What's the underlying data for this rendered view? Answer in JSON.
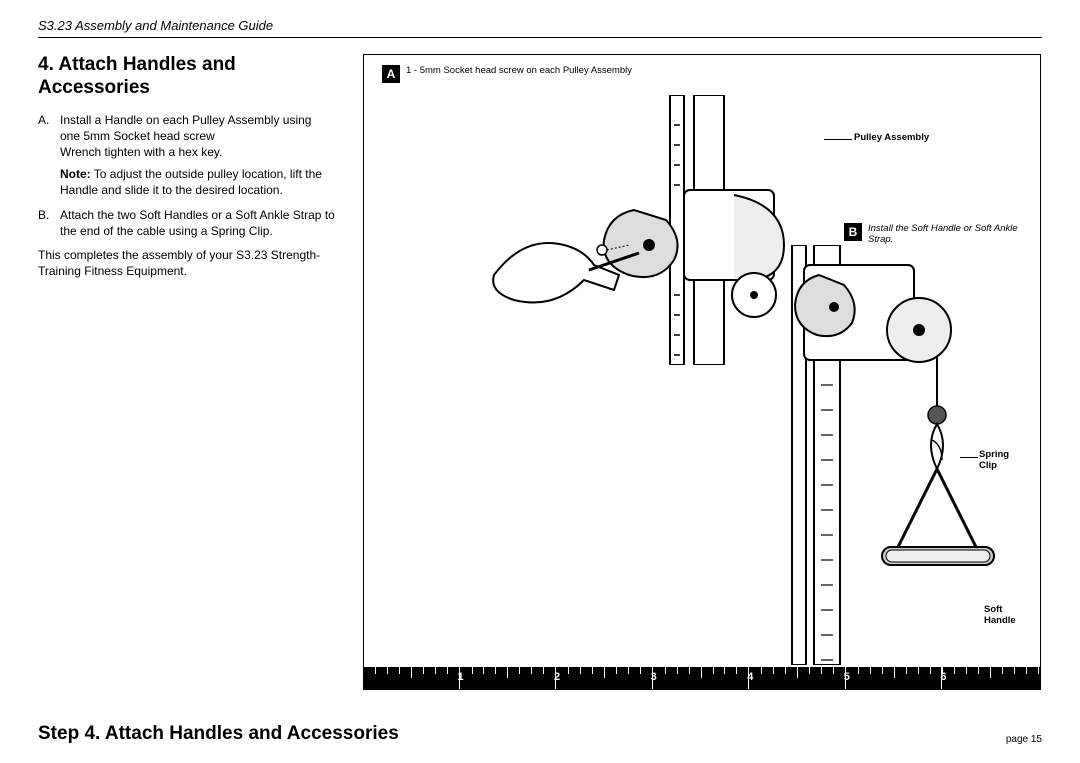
{
  "header": {
    "doc_title": "S3.23 Assembly and Maintenance Guide"
  },
  "section": {
    "heading": "4. Attach Handles and Accessories",
    "steps": [
      {
        "marker": "A.",
        "line1": "Install a Handle on each Pulley Assembly using",
        "line2": "one 5mm Socket head screw",
        "line3": "Wrench tighten with a hex key.",
        "note_label": "Note:",
        "note_text": " To adjust the outside pulley location, lift the Handle and slide it to the desired location."
      },
      {
        "marker": "B.",
        "line1": "Attach the two Soft Handles or a Soft Ankle Strap to the end of the cable using a Spring Clip."
      }
    ],
    "closing": "This completes the assembly of your S3.23 Strength-Training Fitness Equipment."
  },
  "figure": {
    "callout_a": {
      "letter": "A",
      "text": "1 - 5mm Socket head screw on each Pulley Assembly"
    },
    "callout_b": {
      "letter": "B",
      "text": "Install the Soft Handle or Soft Ankle Strap."
    },
    "labels": {
      "pulley": "Pulley Assembly",
      "spring_clip": "Spring\nClip",
      "soft_handle": "Soft\nHandle"
    }
  },
  "ruler": {
    "numbers": [
      "1",
      "2",
      "3",
      "4",
      "5",
      "6"
    ]
  },
  "footer": {
    "step_title": "Step 4. Attach Handles and Accessories",
    "page": "page 15"
  },
  "colors": {
    "ink": "#000000",
    "paper": "#ffffff"
  }
}
